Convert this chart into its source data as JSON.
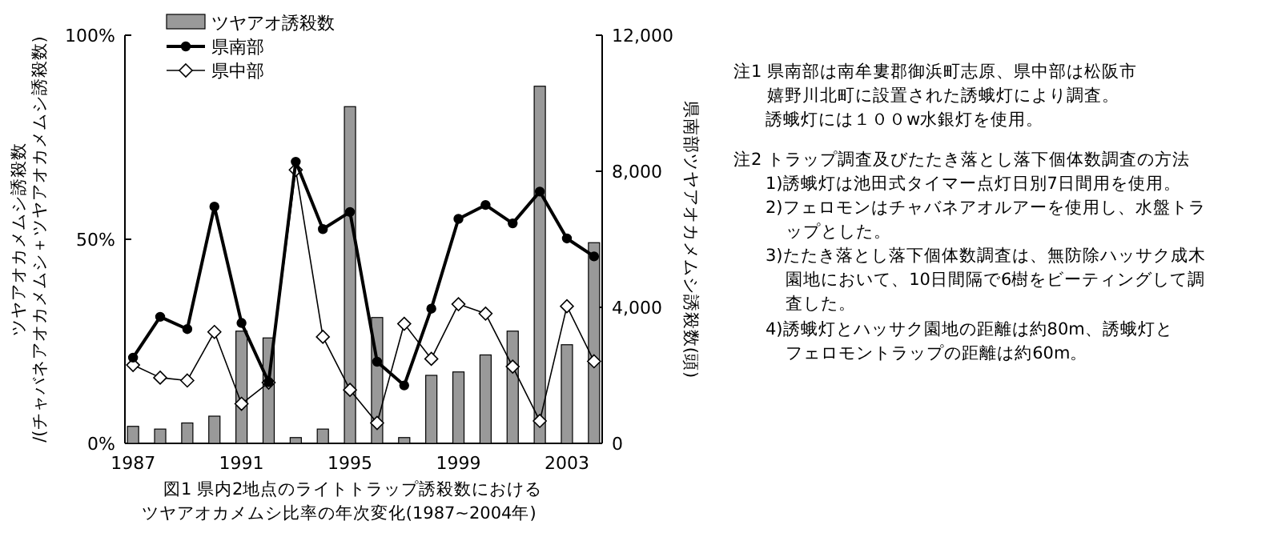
{
  "chart_data": {
    "type": "line",
    "title": "図1 県内2地点のライトトラップ誘殺数におけるツヤアオカメムシ比率の年次変化(1987~2004年)",
    "ylabel": "ツヤアオカメムシ誘殺数\n/(チャバネアオカメムシ＋ツヤアオカメムシ誘殺数)",
    "y2label": "県南部ツヤアオカメムシ誘殺数(頭)",
    "x": [
      1987,
      1988,
      1989,
      1990,
      1991,
      1992,
      1993,
      1994,
      1995,
      1996,
      1997,
      1998,
      1999,
      2000,
      2001,
      2002,
      2003,
      2004
    ],
    "xlim": [
      1986.7,
      2004.3
    ],
    "xticks": [
      1987,
      1991,
      1995,
      1999,
      2003
    ],
    "ylim": [
      0,
      100
    ],
    "yticks": [
      {
        "value": 0,
        "label": "0%"
      },
      {
        "value": 50,
        "label": "50%"
      },
      {
        "value": 100,
        "label": "100%"
      }
    ],
    "y2lim": [
      0,
      12000
    ],
    "y2ticks": [
      0,
      {
        "value": 4000,
        "label": "4,000"
      },
      {
        "value": 8000,
        "label": "8,000"
      },
      {
        "value": 12000,
        "label": "12,000"
      }
    ],
    "grid": false,
    "legend": "top left",
    "series": [
      {
        "name": "ツヤアオ誘殺数",
        "type": "bar",
        "axis": "y2",
        "color": "#999999",
        "values": [
          500,
          420,
          600,
          800,
          3300,
          3100,
          170,
          420,
          9900,
          3700,
          170,
          2000,
          2100,
          2600,
          3300,
          10500,
          2900,
          5900
        ]
      },
      {
        "name": "県南部",
        "color": "#000000",
        "marker": "circle",
        "values": [
          21,
          31,
          28,
          58,
          29.5,
          15,
          69,
          52.5,
          56.7,
          20,
          14.2,
          33,
          55,
          58.4,
          53.9,
          61.7,
          50.2,
          45.8
        ]
      },
      {
        "name": "県中部",
        "color": "#000000",
        "marker": "diamond",
        "values": [
          19.2,
          16.1,
          15.4,
          27.3,
          9.7,
          14.9,
          67,
          26.1,
          13.1,
          5,
          29.3,
          20.7,
          34.1,
          31.8,
          18.8,
          5.5,
          33.6,
          20.1
        ]
      }
    ],
    "annotations": [
      "注1 県南部は南牟婁郡御浜町志原、県中部は松阪市嬉野川北町に設置された誘蛾灯により調査。",
      "誘蛾灯には１００w水銀灯を使用。",
      "注2 トラップ調査及びたたき落とし落下個体数調査の方法",
      "1)誘蛾灯は池田式タイマー点灯日別7日間用を使用。",
      "2)フェロモンはチャバネアオルアーを使用し、水盤トラップとした。",
      "3)たたき落とし落下個体数調査は、無防除ハッサク成木園地において、10日間隔で6樹をビーティングして調査した。",
      "4)誘蛾灯とハッサク園地の距離は約80m、誘蛾灯とフェロモントラップの距離は約60m。"
    ]
  }
}
